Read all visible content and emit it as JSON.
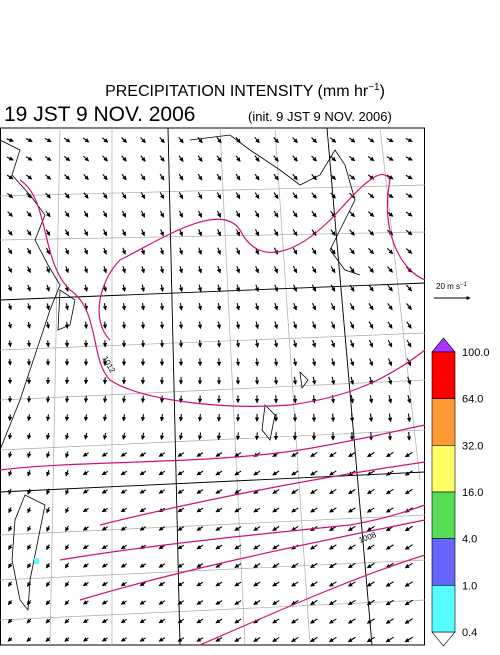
{
  "header": {
    "title": "PRECIPITATION INTENSITY (mm hr",
    "title_exponent": "−1",
    "title_close": ")",
    "valid_time": "19 JST 9 NOV. 2006",
    "init_time": "(init. 9 JST 9 NOV. 2006)"
  },
  "vector_legend": {
    "label": "20 m s",
    "exponent": "−1"
  },
  "contour_labels": [
    "1012",
    "1008"
  ],
  "colorbar": {
    "labels": [
      "100.0",
      "64.0",
      "32.0",
      "16.0",
      "4.0",
      "1.0",
      "0.4"
    ],
    "colors": [
      "#ff0000",
      "#ff9933",
      "#ffff66",
      "#55dd55",
      "#6666ff",
      "#55ffff"
    ]
  }
}
